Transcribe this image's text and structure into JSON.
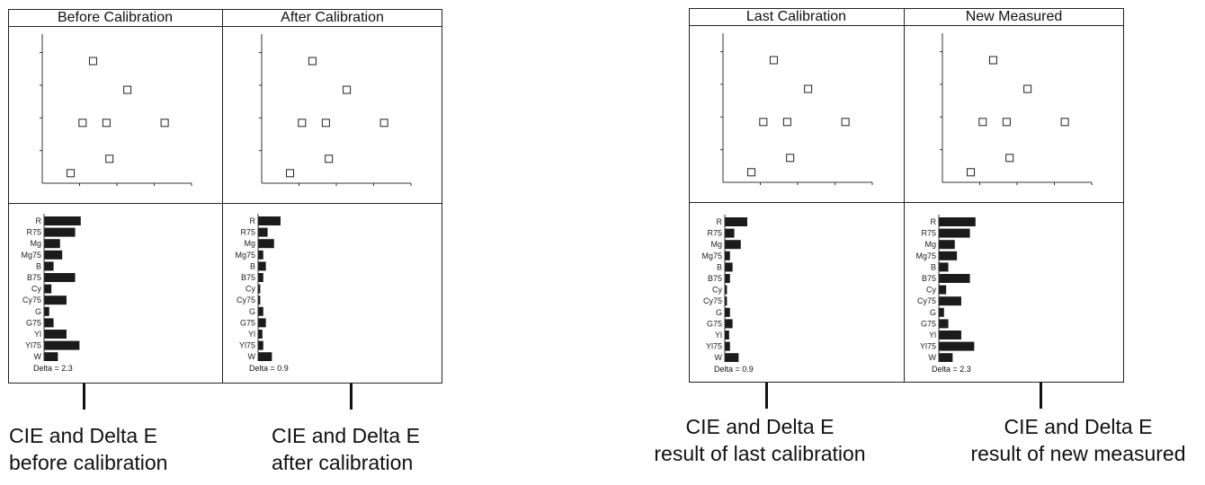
{
  "panels": [
    {
      "id": "left",
      "titles": [
        "Before Calibration",
        "After Calibration"
      ],
      "cells": [
        {
          "delta": "Delta = 2.3",
          "bars": [
            0.85,
            0.72,
            0.37,
            0.42,
            0.22,
            0.72,
            0.17,
            0.52,
            0.12,
            0.22,
            0.52,
            0.82,
            0.32
          ]
        },
        {
          "delta": "Delta = 0.9",
          "bars": [
            0.52,
            0.22,
            0.37,
            0.12,
            0.18,
            0.12,
            0.05,
            0.05,
            0.12,
            0.18,
            0.1,
            0.12,
            0.32
          ]
        }
      ],
      "captions": [
        {
          "line1": "CIE and Delta E",
          "line2": "before calibration"
        },
        {
          "line1": "CIE and Delta E",
          "line2": "after calibration"
        }
      ]
    },
    {
      "id": "right",
      "titles": [
        "Last Calibration",
        "New Measured"
      ],
      "cells": [
        {
          "delta": "Delta = 0.9",
          "bars": [
            0.52,
            0.22,
            0.37,
            0.12,
            0.18,
            0.12,
            0.05,
            0.05,
            0.12,
            0.18,
            0.1,
            0.12,
            0.32
          ]
        },
        {
          "delta": "Delta = 2.3",
          "bars": [
            0.85,
            0.72,
            0.37,
            0.42,
            0.22,
            0.72,
            0.17,
            0.52,
            0.12,
            0.22,
            0.52,
            0.82,
            0.32
          ]
        }
      ],
      "captions": [
        {
          "line1": "CIE and Delta E",
          "line2": "result of last calibration"
        },
        {
          "line1": "CIE and Delta E",
          "line2": "result of new measured"
        }
      ]
    }
  ],
  "bar_labels": [
    "R",
    "R75",
    "Mg",
    "Mg75",
    "B",
    "B75",
    "Cy",
    "Cy75",
    "G",
    "G75",
    "Yl",
    "Yl75",
    "W"
  ],
  "scatter_points": [
    [
      0.34,
      0.85
    ],
    [
      0.57,
      0.65
    ],
    [
      0.27,
      0.42
    ],
    [
      0.43,
      0.42
    ],
    [
      0.82,
      0.42
    ],
    [
      0.45,
      0.17
    ],
    [
      0.19,
      0.07
    ]
  ]
}
